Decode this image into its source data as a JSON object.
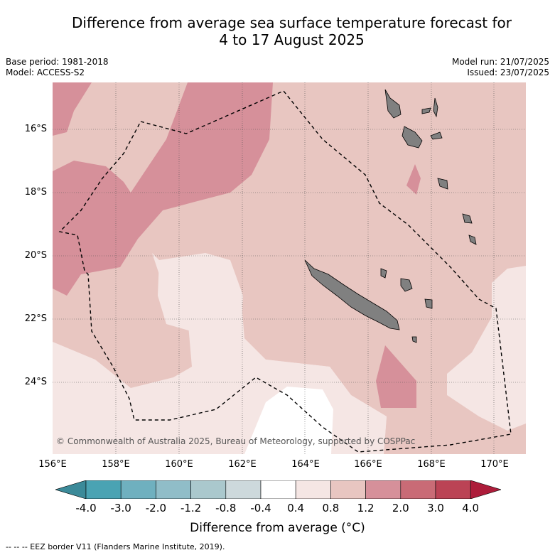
{
  "title_line1": "Difference from average sea surface temperature forecast for",
  "title_line2": "4 to 17 August 2025",
  "base_period": "Base period: 1981-2018",
  "model": "Model: ACCESS-S2",
  "model_run": "Model run: 21/07/2025",
  "issued": "Issued: 23/07/2025",
  "lat_labels": [
    "16°S",
    "18°S",
    "20°S",
    "22°S",
    "24°S"
  ],
  "lon_labels": [
    "156°E",
    "158°E",
    "160°E",
    "162°E",
    "164°E",
    "166°E",
    "168°E",
    "170°E"
  ],
  "copyright": "© Commonwealth of Australia 2025, Bureau of Meteorology, supported by COSPPac",
  "colorbar": {
    "ticks": [
      "-4.0",
      "-3.0",
      "-2.0",
      "-1.2",
      "-0.8",
      "-0.4",
      "0.4",
      "0.8",
      "1.2",
      "2.0",
      "3.0",
      "4.0"
    ],
    "colors": [
      "#4aa3b3",
      "#6fb0bf",
      "#90bdc8",
      "#aac8cd",
      "#cdd9dc",
      "#ffffff",
      "#f5e6e4",
      "#e8c6c1",
      "#d6909a",
      "#c96b76",
      "#bb4355"
    ],
    "low_color": "#3b8a99",
    "high_color": "#ad1c3a",
    "label": "Difference from average (°C)"
  },
  "legend_text": "-- -- -- EEZ border V11 (Flanders Marine Institute, 2019).",
  "colors": {
    "land": "#808080",
    "eez": "#000000"
  }
}
